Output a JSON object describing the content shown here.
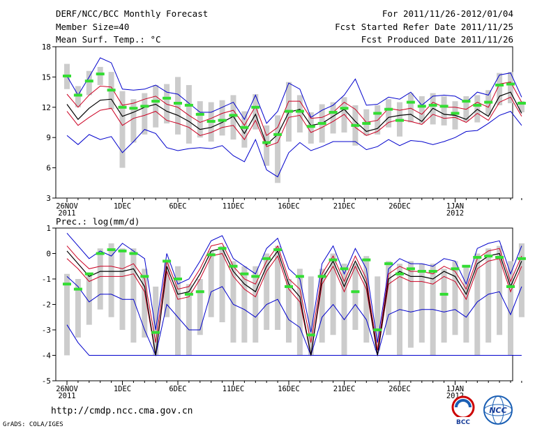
{
  "header": {
    "title": "DERF/NCC/BCC Monthly Forecast",
    "member": "Member Size=40",
    "variable": "Mean Surf. Temp.: °C",
    "forecast_period": "For 2011/11/26-2012/01/04",
    "started": "Fcst Started Refer Date 2011/11/25",
    "produced": "Fcst Produced Date 2011/11/26"
  },
  "footer": {
    "url": "http://cmdp.ncc.cma.gov.cn",
    "grads": "GrADS: COLA/IGES"
  },
  "logos": {
    "bcc": "BCC",
    "ncc": "NCC"
  },
  "colors": {
    "ensemble_mean": "#000000",
    "range": "#0000cc",
    "spread": "#cc0022",
    "climatology": "#33dd33",
    "box": "#cccccc"
  },
  "chart_data": [
    {
      "type": "line",
      "title": "Mean Surf. Temp.: °C",
      "x_tick_labels": [
        "26NOV",
        "1DEC",
        "6DEC",
        "11DEC",
        "16DEC",
        "21DEC",
        "26DEC",
        "1JAN"
      ],
      "x_year_labels": [
        "2011",
        "2012"
      ],
      "ylim": [
        3,
        18
      ],
      "y_ticks": [
        3,
        6,
        9,
        12,
        15,
        18
      ],
      "series": [
        {
          "name": "max",
          "values": [
            15.1,
            13.2,
            15,
            16.9,
            16.4,
            13.8,
            13.7,
            13.8,
            14.2,
            13.5,
            13.3,
            12.4,
            11.5,
            11.5,
            12,
            12.5,
            10.8,
            13.2,
            10.4,
            11.6,
            14.4,
            13.8,
            11,
            11.7,
            12.2,
            13.2,
            14.8,
            12.2,
            12.3,
            13,
            12.8,
            13.5,
            12.2,
            13.1,
            13.2,
            13.1,
            12.5,
            13.5,
            13.2,
            15.2,
            15.4,
            13
          ]
        },
        {
          "name": "upper",
          "values": [
            13.3,
            12,
            13.2,
            14.1,
            14,
            12.2,
            12.4,
            12.8,
            13.1,
            12.3,
            12,
            11.2,
            10.5,
            10.9,
            11.4,
            11.7,
            10.2,
            12.1,
            9.2,
            10,
            12.6,
            12.6,
            10.9,
            11,
            11.5,
            12.5,
            11.8,
            10.5,
            10.7,
            11.9,
            11.7,
            11.9,
            11.3,
            12.5,
            12,
            12,
            11.8,
            12.5,
            12,
            14.3,
            14.5,
            12.5
          ]
        },
        {
          "name": "mean",
          "values": [
            12.3,
            10.8,
            11.9,
            12.7,
            12.8,
            11.1,
            11.5,
            12,
            12.3,
            11.6,
            11.2,
            10.6,
            9.8,
            10,
            10.5,
            11.1,
            9.4,
            11.3,
            8.3,
            9.3,
            11.5,
            11.8,
            10.2,
            10.4,
            11.1,
            11.8,
            10.6,
            9.6,
            9.9,
            11,
            11.2,
            11.3,
            10.6,
            11.9,
            11.3,
            11.2,
            10.8,
            11.8,
            11.1,
            13.1,
            13.5,
            11.4
          ]
        },
        {
          "name": "lower",
          "values": [
            11.6,
            10.2,
            11,
            11.7,
            11.9,
            10.2,
            10.9,
            11.2,
            11.6,
            10.7,
            10.4,
            10,
            9.2,
            9.5,
            10,
            10.2,
            8.8,
            10.7,
            8.1,
            8.5,
            11,
            11.2,
            9.5,
            10,
            10.6,
            11.3,
            10,
            9.2,
            9.6,
            10.5,
            10.8,
            10.6,
            10.3,
            11.3,
            10.9,
            11,
            10.5,
            11.4,
            10.7,
            12.5,
            13,
            11.1
          ]
        },
        {
          "name": "min",
          "values": [
            9.2,
            8.3,
            9.3,
            8.8,
            9.1,
            7.5,
            8.6,
            9.8,
            9.4,
            8,
            7.7,
            7.9,
            8,
            7.9,
            8.2,
            7.2,
            6.6,
            8.8,
            5.8,
            5.1,
            7.5,
            8.5,
            7.7,
            8.1,
            8.6,
            8.6,
            8.6,
            7.8,
            8.1,
            8.8,
            8.2,
            8.7,
            8.6,
            8.3,
            8.6,
            9,
            9.6,
            9.7,
            10.4,
            11.2,
            11.6,
            10.2
          ]
        },
        {
          "name": "climatology",
          "values": [
            15.1,
            13.2,
            14.6,
            15.3,
            13.7,
            12,
            11.9,
            12.1,
            12.6,
            12.9,
            12.4,
            12.2,
            11.3,
            10.6,
            10.7,
            11.2,
            10,
            12,
            8.5,
            9.3,
            11.6,
            11.6,
            10.1,
            10.4,
            11.5,
            11.9,
            10.2,
            10.4,
            11.4,
            11.8,
            10.7,
            12.5,
            12.1,
            12.2,
            12.1,
            11.4,
            12.6,
            12.2,
            12.5,
            14.2,
            14.3,
            12.4
          ]
        },
        {
          "name": "box_high",
          "values": [
            16.3,
            14.1,
            15.6,
            16,
            15.5,
            13.6,
            12.8,
            13.4,
            14.2,
            14.3,
            15,
            14.2,
            12.6,
            12.5,
            12.7,
            13.2,
            11.6,
            13.3,
            10.2,
            11.2,
            14.5,
            13.2,
            11.5,
            12.3,
            12.5,
            13,
            12.2,
            11.8,
            12.2,
            12.8,
            12.5,
            13.4,
            13.1,
            13.4,
            13.1,
            12.6,
            13.1,
            13.2,
            13.7,
            15.4,
            15.5,
            12.6
          ]
        },
        {
          "name": "box_low",
          "values": [
            13.8,
            12,
            13.2,
            14.2,
            11.8,
            6,
            8.5,
            9.3,
            10,
            10.4,
            9.3,
            8.4,
            9,
            8.6,
            9.2,
            8.8,
            8,
            9.8,
            6.2,
            4.5,
            8.6,
            9.5,
            8.4,
            8.5,
            9.4,
            9.5,
            8.2,
            9.2,
            9.3,
            10,
            9.1,
            10.5,
            10.4,
            10.3,
            10.2,
            9.8,
            10.6,
            10.5,
            11.2,
            12.2,
            12.4,
            11.5
          ]
        }
      ]
    },
    {
      "type": "line",
      "title": "Prec.: log(mm/d)",
      "x_tick_labels": [
        "26NOV",
        "1DEC",
        "6DEC",
        "11DEC",
        "16DEC",
        "21DEC",
        "26DEC",
        "1JAN"
      ],
      "x_year_labels": [
        "2011",
        "2012"
      ],
      "ylim": [
        -5,
        1
      ],
      "y_ticks": [
        -5,
        -4,
        -3,
        -2,
        -1,
        0,
        1
      ],
      "series": [
        {
          "name": "max",
          "values": [
            0.8,
            0.3,
            -0.2,
            0.1,
            -0.1,
            0.4,
            0.1,
            -0.2,
            -3,
            0,
            -1.2,
            -1,
            -0.3,
            0.5,
            0.7,
            -0.2,
            -0.5,
            -0.8,
            0.2,
            0.6,
            -0.6,
            -1,
            -3.1,
            -0.4,
            0.3,
            -0.8,
            0.2,
            -0.6,
            -3.5,
            -0.6,
            -0.2,
            -0.4,
            -0.4,
            -0.5,
            -0.2,
            -0.3,
            -1.2,
            0.2,
            0.4,
            0.5,
            -0.8,
            0.3
          ]
        },
        {
          "name": "upper",
          "values": [
            0.3,
            -0.2,
            -0.6,
            -0.5,
            -0.5,
            -0.6,
            -0.4,
            -1,
            -3.5,
            -0.3,
            -1.4,
            -1.3,
            -0.6,
            0.3,
            0.4,
            -0.5,
            -1,
            -1.2,
            -0.3,
            0.3,
            -1,
            -1.4,
            -3.5,
            -0.8,
            -0.1,
            -1.1,
            -0.1,
            -1,
            -3.8,
            -0.8,
            -0.5,
            -0.7,
            -0.7,
            -0.8,
            -0.5,
            -0.7,
            -1.4,
            -0.2,
            0.1,
            0.2,
            -1.1,
            -0.1
          ]
        },
        {
          "name": "mean",
          "values": [
            0.1,
            -0.4,
            -0.9,
            -0.7,
            -0.7,
            -0.7,
            -0.6,
            -1.3,
            -4,
            -0.5,
            -1.6,
            -1.5,
            -0.8,
            0.1,
            0.2,
            -0.7,
            -1.2,
            -1.5,
            -0.5,
            0.1,
            -1.2,
            -1.7,
            -4,
            -1,
            -0.3,
            -1.3,
            -0.3,
            -1.2,
            -4,
            -1,
            -0.7,
            -0.9,
            -0.9,
            -1,
            -0.7,
            -0.9,
            -1.6,
            -0.4,
            -0.1,
            0,
            -1.3,
            -0.3
          ]
        },
        {
          "name": "lower",
          "values": [
            -0.2,
            -0.6,
            -1.1,
            -0.9,
            -0.9,
            -0.9,
            -0.8,
            -1.5,
            -4,
            -0.7,
            -1.8,
            -1.7,
            -1,
            -0.1,
            0,
            -0.9,
            -1.4,
            -1.7,
            -0.7,
            -0.1,
            -1.4,
            -1.9,
            -4,
            -1.2,
            -0.5,
            -1.5,
            -0.5,
            -1.4,
            -4,
            -1.2,
            -0.9,
            -1.1,
            -1.1,
            -1.2,
            -0.9,
            -1.1,
            -1.8,
            -0.6,
            -0.3,
            -0.2,
            -1.5,
            -0.5
          ]
        },
        {
          "name": "min",
          "values": [
            -0.9,
            -1.3,
            -1.9,
            -1.6,
            -1.6,
            -1.8,
            -1.8,
            -3,
            -4,
            -2,
            -2.5,
            -3,
            -3,
            -1.5,
            -1.3,
            -2,
            -2.2,
            -2.5,
            -2,
            -1.8,
            -2.6,
            -2.9,
            -4,
            -2.5,
            -2,
            -2.6,
            -2,
            -2.6,
            -4,
            -2.4,
            -2.2,
            -2.3,
            -2.2,
            -2.2,
            -2.3,
            -2.2,
            -2.5,
            -1.9,
            -1.6,
            -1.5,
            -2.4,
            -1.3
          ]
        },
        {
          "name": "floor",
          "values": [
            -2.8,
            -3.5,
            -4,
            -4,
            -4,
            -4,
            -4,
            -4,
            -4,
            -4,
            -4,
            -4,
            -4,
            -4,
            -4,
            -4,
            -4,
            -4,
            -4,
            -4,
            -4,
            -4,
            -4,
            -4,
            -4,
            -4,
            -4,
            -4,
            -4,
            -4,
            -4,
            -4,
            -4,
            -4,
            -4,
            -4,
            -4,
            -4,
            -4,
            -4,
            -4,
            -4
          ]
        },
        {
          "name": "climatology",
          "values": [
            -1.2,
            -1.4,
            -0.8,
            0,
            0.15,
            0.1,
            0,
            -0.9,
            -3.1,
            -0.3,
            -1,
            -1.6,
            -1.5,
            -0.05,
            0.2,
            -0.5,
            -0.8,
            -0.9,
            -0.2,
            0.15,
            -1.3,
            -0.9,
            -3.2,
            -0.9,
            -0.25,
            -0.6,
            -1.5,
            -0.25,
            -3,
            -0.4,
            -0.8,
            -0.6,
            -0.7,
            -0.7,
            -1.6,
            -0.6,
            -0.5,
            -0.15,
            -0.1,
            -0.15,
            -1.3,
            -0.2
          ]
        },
        {
          "name": "box_high",
          "values": [
            -0.8,
            -1,
            -0.8,
            0.2,
            0.4,
            0.2,
            0.2,
            -0.6,
            -1.3,
            -0.3,
            -0.5,
            -1.2,
            -1,
            0.1,
            0.3,
            -0.3,
            -0.5,
            -0.5,
            0,
            0.3,
            -1,
            -0.6,
            -0.9,
            -0.6,
            0,
            -0.4,
            -0.4,
            -0.1,
            -0.9,
            -0.3,
            -0.4,
            -0.3,
            -0.4,
            -0.4,
            -0.6,
            -0.3,
            -0.5,
            0,
            0.2,
            0.3,
            -0.3,
            0.4
          ]
        },
        {
          "name": "box_low",
          "values": [
            -4,
            -3.3,
            -2.8,
            -2.2,
            -2.5,
            -3,
            -3.5,
            -3.3,
            -4,
            -2.5,
            -4,
            -4,
            -3.2,
            -2.5,
            -2.7,
            -3.5,
            -3.5,
            -3.5,
            -3,
            -3,
            -3.5,
            -4,
            -4,
            -3.5,
            -3.2,
            -4,
            -3,
            -3.5,
            -3.8,
            -3.2,
            -4,
            -3.7,
            -3.5,
            -4,
            -3.5,
            -3.2,
            -3.5,
            -4,
            -3.5,
            -3.2,
            -4,
            -2.5
          ]
        }
      ]
    }
  ]
}
